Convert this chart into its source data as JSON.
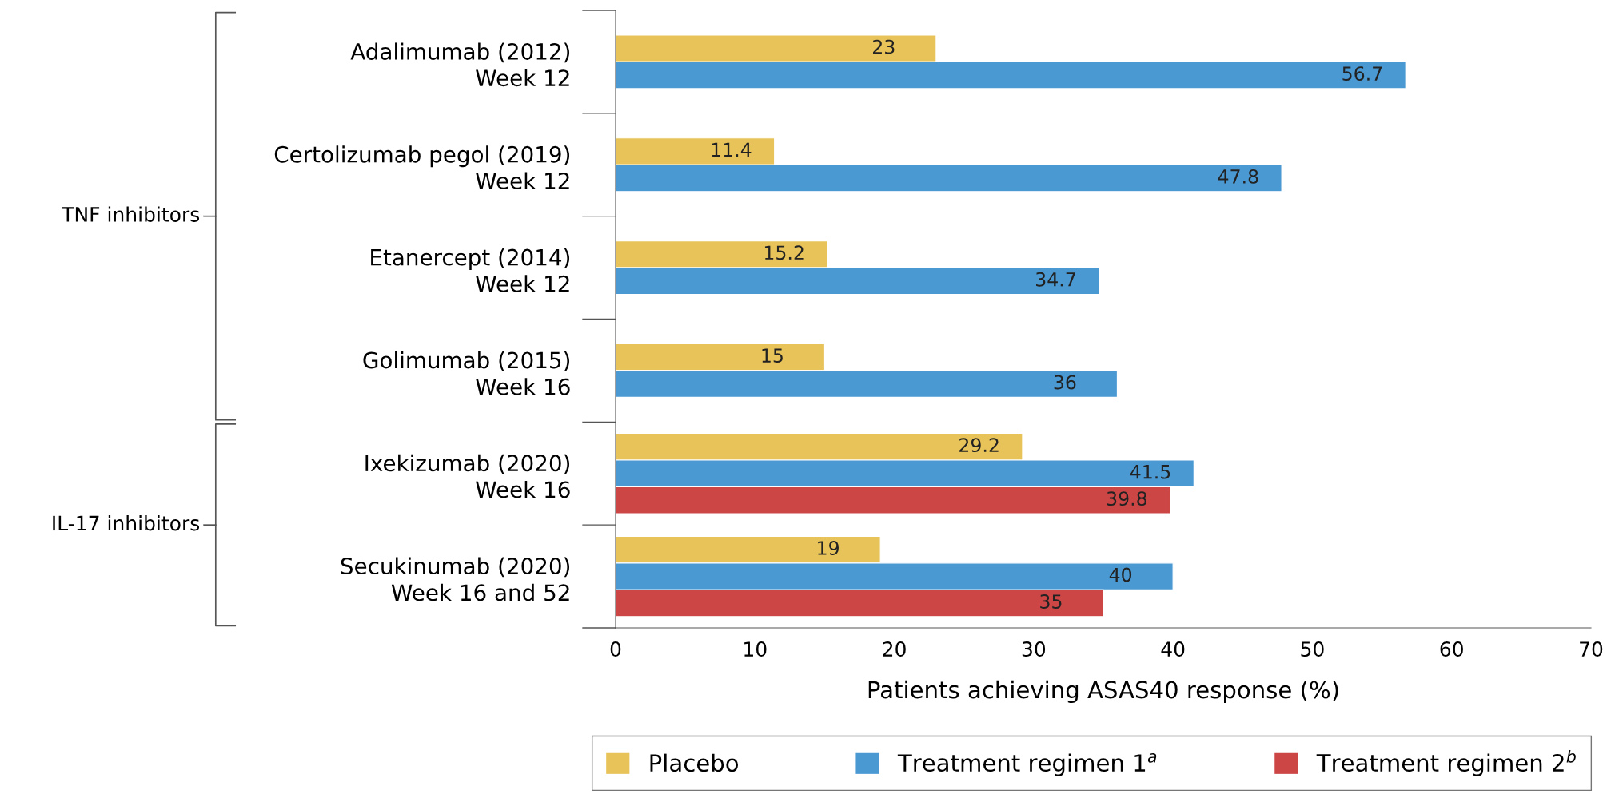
{
  "chart_data": {
    "type": "bar",
    "orientation": "horizontal",
    "xlabel": "Patients achieving ASAS40 response (%)",
    "categories": [
      "Adalimumab (2012)\nWeek 12",
      "Certolizumab pegol (2019)\nWeek 12",
      "Etanercept (2014)\nWeek 12",
      "Golimumab (2015)\nWeek 16",
      "Ixekizumab (2020)\nWeek 16",
      "Secukinumab (2020)\nWeek 16 and 52"
    ],
    "series": [
      {
        "name": "Placebo",
        "color": "#e8c35a",
        "values": [
          23,
          11.4,
          15.2,
          15,
          29.2,
          19
        ]
      },
      {
        "name": "Treatment regimen 1$^{a}$",
        "color": "#4a99d3",
        "values": [
          56.7,
          47.8,
          34.7,
          36,
          41.5,
          40
        ]
      },
      {
        "name": "Treatment regimen 2$^{b}$",
        "color": "#cc4646",
        "values": [
          null,
          null,
          null,
          null,
          39.8,
          35
        ]
      }
    ],
    "xlim": [
      0,
      70
    ],
    "xticks": [
      0,
      10,
      20,
      30,
      40,
      50,
      60,
      70
    ],
    "grid": false,
    "legend": "bottom",
    "data_labels": true,
    "annotations": [
      "TNF inhibitors",
      "IL-17 inhibitors"
    ]
  }
}
